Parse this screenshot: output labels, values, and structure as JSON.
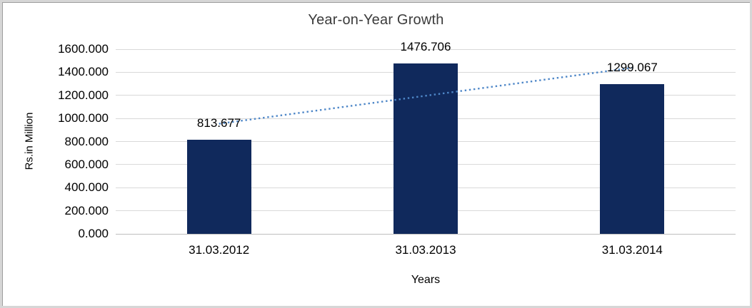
{
  "chart_data": {
    "type": "bar",
    "title": "Year-on-Year Growth",
    "xlabel": "Years",
    "ylabel": "Rs.in Million",
    "categories": [
      "31.03.2012",
      "31.03.2013",
      "31.03.2014"
    ],
    "values": [
      813.677,
      1476.706,
      1299.067
    ],
    "data_labels": [
      "813.677",
      "1476.706",
      "1299.067"
    ],
    "y_ticks": [
      "0.000",
      "200.000",
      "400.000",
      "600.000",
      "800.000",
      "1000.000",
      "1200.000",
      "1400.000",
      "1600.000"
    ],
    "ylim": [
      0,
      1600
    ],
    "grid": true,
    "legend": false,
    "trendline": {
      "type": "linear",
      "style": "dotted"
    },
    "colors": {
      "bar": "#10295c",
      "trendline": "#4e87c8",
      "gridline": "#d9d9d9",
      "axis_line": "#bfbfbf",
      "title_text": "#3b3b3b",
      "label_text": "#000000",
      "frame": "#d6d6d6"
    }
  }
}
